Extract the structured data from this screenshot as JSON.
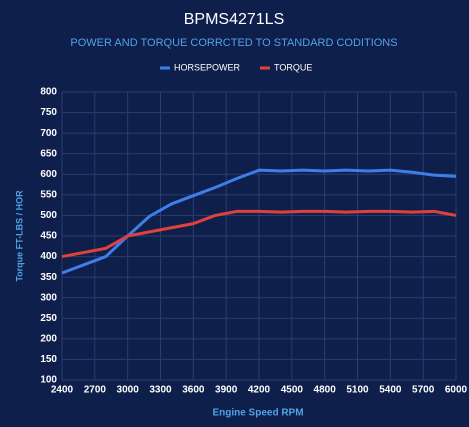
{
  "chart_data": {
    "type": "line",
    "title": "BPMS4271LS",
    "subtitle": "POWER AND TORQUE CORRCTED TO STANDARD CODITIONS",
    "x_label": "Engine Speed RPM",
    "y_label": "Torque FT-LBS / HOR",
    "x": [
      2400,
      2800,
      3000,
      3200,
      3400,
      3600,
      3800,
      4000,
      4200,
      4400,
      4600,
      4800,
      5000,
      5200,
      5400,
      5600,
      5800,
      6000
    ],
    "series": [
      {
        "name": "HORSEPOWER",
        "color": "#3d7ee8",
        "values": [
          360,
          400,
          450,
          498,
          528,
          548,
          568,
          590,
          610,
          608,
          610,
          608,
          610,
          608,
          610,
          605,
          598,
          595
        ]
      },
      {
        "name": "TORQUE",
        "color": "#e0413a",
        "values": [
          400,
          420,
          450,
          460,
          470,
          480,
          500,
          510,
          510,
          508,
          510,
          510,
          508,
          510,
          510,
          508,
          510,
          500
        ]
      }
    ],
    "xlim": [
      2400,
      6000
    ],
    "xticks": [
      2400,
      2700,
      3000,
      3300,
      3600,
      3900,
      4200,
      4500,
      4800,
      5100,
      5400,
      5700,
      6000
    ],
    "ylim": [
      100,
      800
    ],
    "yticks": [
      100,
      150,
      200,
      250,
      300,
      350,
      400,
      450,
      500,
      550,
      600,
      650,
      700,
      750,
      800
    ],
    "grid": true,
    "legend": "top"
  }
}
